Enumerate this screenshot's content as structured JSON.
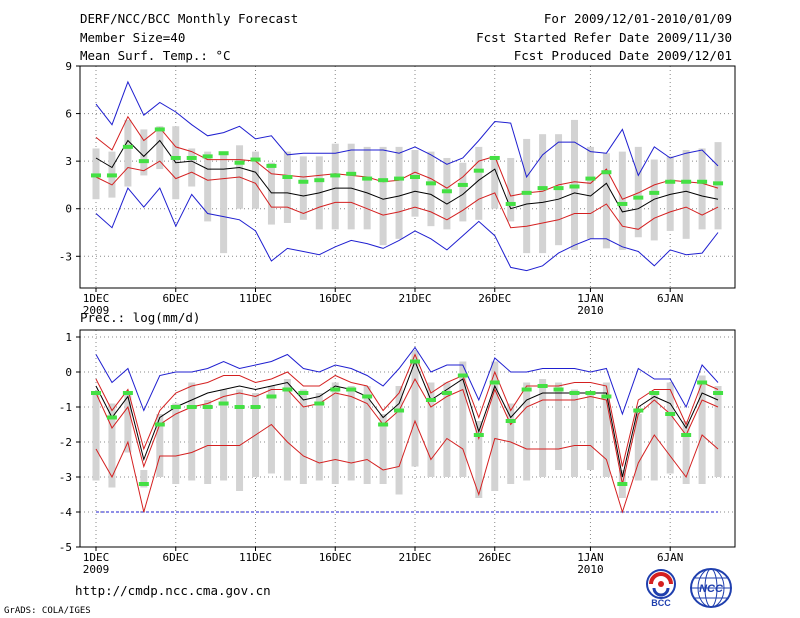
{
  "header": {
    "title": "DERF/NCC/BCC Monthly Forecast",
    "member_size": "Member Size=40",
    "forecast_period": "For 2009/12/01-2010/01/09",
    "fcst_started": "Fcst Started Refer Date 2009/11/30",
    "fcst_produced": "Fcst Produced Date 2009/12/01"
  },
  "footer": {
    "url": "http://cmdp.ncc.cma.gov.cn",
    "grads_credit": "GrADS: COLA/IGES",
    "logo_bcc": "BCC",
    "logo_ncc": "NCC"
  },
  "colors": {
    "ensemble_box": "#d3d3d3",
    "ensemble_max_min": "#1f1fd0",
    "spread_band": "#d42020",
    "ensemble_mean": "#000000",
    "observed_marker": "#44e044",
    "grid": "#888888"
  },
  "chart_data": [
    {
      "type": "line",
      "title": "Mean Surf. Temp.: °C",
      "ylim": [
        -5,
        9
      ],
      "yticks": [
        -3,
        0,
        3,
        6,
        9
      ],
      "xlabels": [
        "1DEC",
        "6DEC",
        "11DEC",
        "16DEC",
        "21DEC",
        "26DEC",
        "1JAN",
        "6JAN"
      ],
      "xlabel_years": {
        "1DEC": "2009",
        "1JAN": "2010"
      },
      "x": [
        1,
        2,
        3,
        4,
        5,
        6,
        7,
        8,
        9,
        10,
        11,
        12,
        13,
        14,
        15,
        16,
        17,
        18,
        19,
        20,
        21,
        22,
        23,
        24,
        25,
        26,
        27,
        28,
        29,
        30,
        31,
        32,
        33,
        34,
        35,
        36,
        37,
        38,
        39,
        40
      ],
      "series": [
        {
          "name": "max",
          "values": [
            6.6,
            5.3,
            8.0,
            5.9,
            6.7,
            6.1,
            5.3,
            4.6,
            4.8,
            5.2,
            4.4,
            4.6,
            3.4,
            3.5,
            3.5,
            3.5,
            3.7,
            3.7,
            3.7,
            3.5,
            3.9,
            3.4,
            2.8,
            3.2,
            4.3,
            5.5,
            5.4,
            2.0,
            3.4,
            4.2,
            4.2,
            3.6,
            3.5,
            5.0,
            2.1,
            3.9,
            3.2,
            3.5,
            3.7,
            2.7
          ]
        },
        {
          "name": "upper",
          "values": [
            4.5,
            3.7,
            5.8,
            4.3,
            5.1,
            3.9,
            3.6,
            3.1,
            3.1,
            3.1,
            3.0,
            2.2,
            2.1,
            2.0,
            2.1,
            2.2,
            2.1,
            2.0,
            1.7,
            1.8,
            2.3,
            1.9,
            1.3,
            2.0,
            3.0,
            3.3,
            0.8,
            1.0,
            1.1,
            1.5,
            1.7,
            1.6,
            2.5,
            0.6,
            1.0,
            1.5,
            1.8,
            1.7,
            1.6,
            1.3
          ]
        },
        {
          "name": "mean",
          "values": [
            3.2,
            2.6,
            4.3,
            3.3,
            4.3,
            2.9,
            3.0,
            2.5,
            2.5,
            2.6,
            2.3,
            1.0,
            1.0,
            0.8,
            1.0,
            1.3,
            1.3,
            1.0,
            0.6,
            0.8,
            1.1,
            0.9,
            0.3,
            0.9,
            1.8,
            2.5,
            0.0,
            0.3,
            0.4,
            0.6,
            1.0,
            0.8,
            1.6,
            -0.2,
            0.0,
            0.6,
            0.9,
            1.1,
            0.8,
            0.6
          ]
        },
        {
          "name": "lower",
          "values": [
            2.0,
            1.5,
            2.6,
            2.4,
            3.0,
            1.9,
            2.3,
            1.8,
            1.9,
            2.0,
            1.6,
            0.1,
            0.1,
            -0.3,
            0.1,
            0.4,
            0.4,
            0.0,
            -0.4,
            -0.2,
            0.1,
            -0.2,
            -0.7,
            -0.1,
            0.6,
            1.0,
            -1.2,
            -1.1,
            -0.9,
            -0.7,
            -0.3,
            -0.3,
            0.3,
            -1.1,
            -1.3,
            -0.6,
            -0.2,
            0.1,
            -0.4,
            0.1
          ]
        },
        {
          "name": "min",
          "values": [
            -0.3,
            -1.2,
            1.3,
            0.1,
            1.3,
            -1.1,
            0.9,
            -0.3,
            -0.5,
            -0.7,
            -1.4,
            -3.3,
            -2.5,
            -2.7,
            -2.9,
            -2.4,
            -2.0,
            -2.2,
            -2.5,
            -2.0,
            -1.4,
            -1.9,
            -2.6,
            -1.7,
            -0.8,
            -1.7,
            -3.7,
            -3.9,
            -3.6,
            -2.8,
            -2.3,
            -1.9,
            -1.9,
            -2.4,
            -2.7,
            -3.6,
            -2.6,
            -2.9,
            -2.8,
            -1.5
          ]
        },
        {
          "name": "box_top",
          "values": [
            3.8,
            3.6,
            5.6,
            5.0,
            5.2,
            5.2,
            3.8,
            3.6,
            3.6,
            4.0,
            3.6,
            2.9,
            3.6,
            3.3,
            3.3,
            4.1,
            4.1,
            3.9,
            3.9,
            3.9,
            3.7,
            3.6,
            3.2,
            2.9,
            3.9,
            3.1,
            3.2,
            4.4,
            4.7,
            4.7,
            5.6,
            3.9,
            3.5,
            3.6,
            3.9,
            3.1,
            3.3,
            3.7,
            3.8,
            4.2
          ]
        },
        {
          "name": "box_bottom",
          "values": [
            0.6,
            0.7,
            1.4,
            2.1,
            2.5,
            0.6,
            1.4,
            -0.8,
            -2.8,
            0.0,
            0.0,
            -1.0,
            -0.9,
            -0.7,
            -1.3,
            -1.3,
            -1.3,
            -1.3,
            -2.3,
            -1.9,
            -0.5,
            -1.1,
            -1.3,
            -0.8,
            -0.7,
            0.0,
            -0.8,
            -2.8,
            -2.8,
            -2.3,
            -2.6,
            -1.9,
            -2.5,
            -2.6,
            -1.8,
            -2.0,
            -1.4,
            -1.9,
            -1.3,
            -1.3
          ]
        },
        {
          "name": "observed",
          "values": [
            2.1,
            2.1,
            3.9,
            3.0,
            5.0,
            3.2,
            3.2,
            3.3,
            3.5,
            2.9,
            3.1,
            2.7,
            2.0,
            1.7,
            1.8,
            2.1,
            2.2,
            1.9,
            1.8,
            1.9,
            2.0,
            1.6,
            1.1,
            1.5,
            2.4,
            3.2,
            0.3,
            1.0,
            1.3,
            1.3,
            1.4,
            1.9,
            2.3,
            0.3,
            0.7,
            1.0,
            1.7,
            1.7,
            1.7,
            1.6
          ]
        }
      ]
    },
    {
      "type": "line",
      "title": "Prec.: log(mm/d)",
      "ylim": [
        -5,
        1.2
      ],
      "yticks": [
        -5,
        -4,
        -3,
        -2,
        -1,
        0,
        1
      ],
      "xlabels": [
        "1DEC",
        "6DEC",
        "11DEC",
        "16DEC",
        "21DEC",
        "26DEC",
        "1JAN",
        "6JAN"
      ],
      "xlabel_years": {
        "1DEC": "2009",
        "1JAN": "2010"
      },
      "x": [
        1,
        2,
        3,
        4,
        5,
        6,
        7,
        8,
        9,
        10,
        11,
        12,
        13,
        14,
        15,
        16,
        17,
        18,
        19,
        20,
        21,
        22,
        23,
        24,
        25,
        26,
        27,
        28,
        29,
        30,
        31,
        32,
        33,
        34,
        35,
        36,
        37,
        38,
        39,
        40
      ],
      "series": [
        {
          "name": "max",
          "values": [
            0.5,
            -0.3,
            0.1,
            -1.1,
            -0.1,
            0.0,
            0.0,
            0.1,
            0.3,
            0.1,
            0.2,
            0.3,
            0.5,
            0.1,
            0.0,
            0.2,
            0.1,
            -0.1,
            -0.4,
            0.1,
            0.7,
            0.0,
            0.2,
            0.2,
            -0.8,
            0.4,
            0.0,
            0.0,
            0.1,
            0.1,
            0.1,
            0.0,
            0.1,
            -1.2,
            0.1,
            -0.2,
            -0.2,
            -1.0,
            0.2,
            -0.3
          ]
        },
        {
          "name": "upper",
          "values": [
            -0.2,
            -1.1,
            -0.5,
            -2.2,
            -1.1,
            -0.6,
            -0.4,
            -0.3,
            -0.1,
            -0.1,
            -0.3,
            -0.2,
            0.0,
            -0.4,
            -0.4,
            -0.1,
            -0.3,
            -0.4,
            -1.1,
            -0.6,
            0.5,
            -0.6,
            -0.3,
            -0.1,
            -1.3,
            0.0,
            -1.1,
            -0.4,
            -0.4,
            -0.4,
            -0.3,
            -0.3,
            -0.4,
            -2.7,
            -0.8,
            -0.5,
            -0.5,
            -1.5,
            -0.3,
            -0.5
          ]
        },
        {
          "name": "mean",
          "values": [
            -0.4,
            -1.3,
            -0.7,
            -2.5,
            -1.3,
            -1.0,
            -0.8,
            -0.6,
            -0.5,
            -0.4,
            -0.5,
            -0.4,
            -0.3,
            -0.8,
            -0.7,
            -0.4,
            -0.5,
            -0.7,
            -1.3,
            -0.9,
            0.3,
            -0.8,
            -0.5,
            -0.2,
            -1.7,
            -0.4,
            -1.3,
            -0.8,
            -0.6,
            -0.6,
            -0.6,
            -0.6,
            -0.6,
            -3.0,
            -1.0,
            -0.7,
            -0.9,
            -1.6,
            -0.6,
            -0.8
          ]
        },
        {
          "name": "lower",
          "values": [
            -0.6,
            -1.6,
            -1.0,
            -2.7,
            -1.5,
            -1.2,
            -1.0,
            -0.9,
            -0.7,
            -0.6,
            -0.7,
            -0.5,
            -0.5,
            -1.0,
            -0.9,
            -0.6,
            -0.7,
            -0.9,
            -1.5,
            -1.1,
            -0.2,
            -1.0,
            -0.7,
            -0.5,
            -1.9,
            -0.5,
            -1.5,
            -1.0,
            -0.8,
            -0.8,
            -0.8,
            -0.7,
            -0.8,
            -3.2,
            -1.2,
            -0.8,
            -1.2,
            -1.8,
            -0.8,
            -1.0
          ]
        },
        {
          "name": "bottom",
          "values": [
            -2.2,
            -3.0,
            -2.0,
            -4.0,
            -2.4,
            -2.4,
            -2.3,
            -2.1,
            -2.1,
            -2.1,
            -1.8,
            -1.5,
            -2.0,
            -2.4,
            -2.6,
            -2.5,
            -2.6,
            -2.5,
            -2.8,
            -2.7,
            -1.4,
            -2.5,
            -1.9,
            -2.2,
            -3.5,
            -1.9,
            -2.0,
            -2.2,
            -2.2,
            -2.2,
            -2.1,
            -2.1,
            -2.5,
            -4.0,
            -2.6,
            -1.8,
            -2.4,
            -3.0,
            -1.8,
            -2.2
          ]
        },
        {
          "name": "box_top",
          "values": [
            -0.6,
            -0.9,
            -0.6,
            -2.8,
            -1.2,
            -0.9,
            -0.3,
            -0.8,
            -0.5,
            -0.5,
            -0.6,
            -0.4,
            -0.2,
            -0.5,
            -0.6,
            -0.3,
            -0.4,
            -0.4,
            -1.2,
            -0.4,
            0.6,
            -0.3,
            -0.3,
            0.3,
            -1.4,
            0.3,
            -0.9,
            -0.3,
            -0.2,
            -0.3,
            -0.5,
            -0.6,
            -0.3,
            -2.8,
            -1.2,
            -0.6,
            -0.3,
            -1.4,
            -0.1,
            -0.4
          ]
        },
        {
          "name": "box_bottom",
          "values": [
            -3.1,
            -3.3,
            -2.3,
            -3.3,
            -3.0,
            -3.2,
            -3.1,
            -3.2,
            -3.1,
            -3.4,
            -3.0,
            -2.9,
            -3.1,
            -3.2,
            -3.1,
            -3.2,
            -3.1,
            -3.2,
            -3.2,
            -3.5,
            -2.7,
            -3.0,
            -3.0,
            -3.0,
            -3.6,
            -3.4,
            -3.2,
            -3.1,
            -3.0,
            -2.8,
            -3.0,
            -2.8,
            -3.0,
            -3.6,
            -3.1,
            -3.1,
            -2.9,
            -3.2,
            -3.2,
            -3.0
          ]
        },
        {
          "name": "floor",
          "values": [
            -4,
            -4,
            -4,
            -4,
            -4,
            -4,
            -4,
            -4,
            -4,
            -4,
            -4,
            -4,
            -4,
            -4,
            -4,
            -4,
            -4,
            -4,
            -4,
            -4,
            -4,
            -4,
            -4,
            -4,
            -4,
            -4,
            -4,
            -4,
            -4,
            -4,
            -4,
            -4,
            -4,
            -4,
            -4,
            -4,
            -4,
            -4,
            -4,
            -4
          ]
        },
        {
          "name": "observed",
          "values": [
            -0.6,
            -1.3,
            -0.6,
            -3.2,
            -1.5,
            -1.0,
            -1.0,
            -1.0,
            -0.9,
            -1.0,
            -1.0,
            -0.7,
            -0.5,
            -0.6,
            -0.9,
            -0.5,
            -0.5,
            -0.7,
            -1.5,
            -1.1,
            0.3,
            -0.8,
            -0.6,
            -0.1,
            -1.8,
            -0.3,
            -1.4,
            -0.5,
            -0.4,
            -0.5,
            -0.6,
            -0.6,
            -0.7,
            -3.2,
            -1.1,
            -0.6,
            -1.2,
            -1.8,
            -0.3,
            -0.6
          ]
        }
      ]
    }
  ]
}
